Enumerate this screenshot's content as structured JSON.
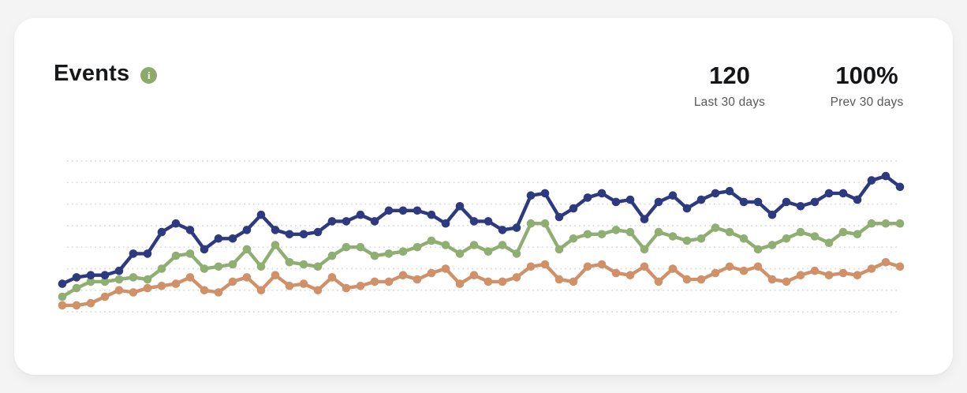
{
  "header": {
    "title": "Events",
    "info_icon_glyph": "i"
  },
  "stats": {
    "current": {
      "value": "120",
      "label": "Last 30 days"
    },
    "previous": {
      "value": "100%",
      "label": "Prev 30 days"
    }
  },
  "colors": {
    "navy_line": "#2e3a7f",
    "green_line": "#8fae72",
    "orange_line": "#d09168",
    "info_icon_bg": "#8cab68",
    "gridline": "#d9d9d9",
    "card_bg": "#ffffff",
    "page_bg": "#f4f4f5",
    "title_text": "#17181a",
    "stat_label_text": "#57585a"
  },
  "chart_data": {
    "type": "line",
    "title": "Events",
    "xlabel": "",
    "ylabel": "",
    "x_axis_visible": false,
    "y_axis_visible": false,
    "legend": "none",
    "grid": true,
    "gridline_count": 8,
    "marker": "circle",
    "x_description": "60 consecutive daily points (prev 30 days + last 30 days), unlabeled",
    "ylim": [
      0,
      7.3
    ],
    "y_units": "relative (gridline spacing = 1, bottom gridline = 0)",
    "series": [
      {
        "name": "navy-series",
        "color": "#2e3a7f",
        "values": [
          1.3,
          1.6,
          1.7,
          1.7,
          1.9,
          2.7,
          2.7,
          3.7,
          4.1,
          3.8,
          2.9,
          3.4,
          3.4,
          3.8,
          4.5,
          3.8,
          3.6,
          3.6,
          3.7,
          4.2,
          4.2,
          4.5,
          4.2,
          4.7,
          4.7,
          4.7,
          4.5,
          4.1,
          4.9,
          4.2,
          4.2,
          3.8,
          3.9,
          5.4,
          5.5,
          4.4,
          4.8,
          5.3,
          5.5,
          5.1,
          5.2,
          4.3,
          5.1,
          5.4,
          4.8,
          5.2,
          5.5,
          5.6,
          5.1,
          5.1,
          4.5,
          5.1,
          4.9,
          5.1,
          5.5,
          5.5,
          5.2,
          6.1,
          6.3,
          5.8
        ]
      },
      {
        "name": "green-series",
        "color": "#8fae72",
        "values": [
          0.7,
          1.1,
          1.4,
          1.4,
          1.5,
          1.6,
          1.5,
          2.0,
          2.6,
          2.7,
          2.0,
          2.1,
          2.2,
          2.9,
          2.1,
          3.1,
          2.3,
          2.2,
          2.1,
          2.6,
          3.0,
          3.0,
          2.6,
          2.7,
          2.8,
          3.0,
          3.3,
          3.1,
          2.7,
          3.1,
          2.8,
          3.1,
          2.7,
          4.1,
          4.1,
          2.9,
          3.4,
          3.6,
          3.6,
          3.8,
          3.7,
          2.9,
          3.7,
          3.5,
          3.3,
          3.4,
          3.9,
          3.7,
          3.4,
          2.9,
          3.1,
          3.4,
          3.7,
          3.5,
          3.2,
          3.7,
          3.6,
          4.1,
          4.1,
          4.1
        ]
      },
      {
        "name": "orange-series",
        "color": "#d09168",
        "values": [
          0.3,
          0.3,
          0.4,
          0.7,
          1.0,
          0.9,
          1.1,
          1.2,
          1.3,
          1.6,
          1.0,
          0.9,
          1.4,
          1.6,
          1.0,
          1.7,
          1.2,
          1.3,
          1.0,
          1.6,
          1.1,
          1.2,
          1.4,
          1.4,
          1.7,
          1.5,
          1.8,
          2.0,
          1.3,
          1.7,
          1.4,
          1.4,
          1.6,
          2.1,
          2.2,
          1.5,
          1.4,
          2.1,
          2.2,
          1.8,
          1.7,
          2.1,
          1.4,
          2.0,
          1.5,
          1.5,
          1.8,
          2.1,
          1.9,
          2.1,
          1.5,
          1.4,
          1.7,
          1.9,
          1.7,
          1.8,
          1.7,
          2.0,
          2.3,
          2.1
        ]
      }
    ]
  }
}
